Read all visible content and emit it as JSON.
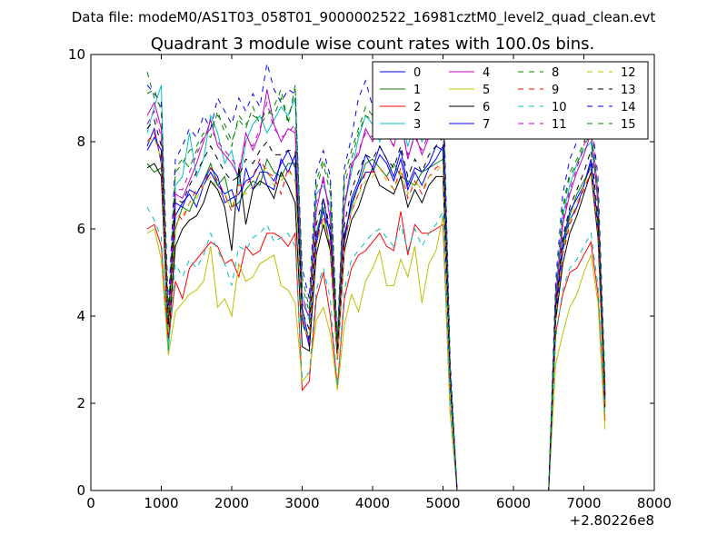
{
  "chart_data": {
    "type": "line",
    "suptitle": "Data file: modeM0/AS1T03_058T01_9000002522_16981cztM0_level2_quad_clean.evt",
    "title": "Quadrant 3 module wise count rates with 100.0s bins.",
    "xlabel": "",
    "ylabel": "",
    "x_offset_label": "+2.80226e8",
    "xlim": [
      0,
      8000
    ],
    "ylim": [
      0,
      10
    ],
    "xticks": [
      0,
      1000,
      2000,
      3000,
      4000,
      5000,
      6000,
      7000,
      8000
    ],
    "yticks": [
      0,
      2,
      4,
      6,
      8,
      10
    ],
    "x": [
      800,
      900,
      1000,
      1100,
      1200,
      1300,
      1400,
      1500,
      1600,
      1700,
      1800,
      1900,
      2000,
      2100,
      2200,
      2300,
      2400,
      2500,
      2600,
      2700,
      2800,
      2900,
      3000,
      3100,
      3200,
      3300,
      3400,
      3500,
      3600,
      3700,
      3800,
      3900,
      4000,
      4100,
      4200,
      4300,
      4400,
      4500,
      4600,
      4700,
      4800,
      4900,
      5000,
      5100,
      5200,
      5300,
      5400,
      5500,
      5600,
      5700,
      5800,
      5900,
      6000,
      6100,
      6200,
      6300,
      6400,
      6500,
      6600,
      6700,
      6800,
      6900,
      7000,
      7100,
      7200,
      7300
    ],
    "legend_location": "upper right",
    "series": [
      {
        "name": "0",
        "color": "#0000ff",
        "dash": "solid",
        "values": [
          7.8,
          8.1,
          7.8,
          3.6,
          6.3,
          6.6,
          6.8,
          6.5,
          7.0,
          7.3,
          7.0,
          6.8,
          6.9,
          6.4,
          7.4,
          6.9,
          7.3,
          7.3,
          7.1,
          7.5,
          7.8,
          7.4,
          4.0,
          3.3,
          5.6,
          6.7,
          5.8,
          3.2,
          5.7,
          6.7,
          7.1,
          7.7,
          7.4,
          7.9,
          7.6,
          7.2,
          7.8,
          7.0,
          7.4,
          7.3,
          7.5,
          7.9,
          7.8,
          2.6,
          0,
          0,
          0,
          0,
          0,
          0,
          0,
          0,
          0,
          0,
          0,
          0,
          0,
          0,
          4.0,
          5.5,
          6.2,
          6.5,
          7.0,
          7.6,
          6.0,
          2.2
        ]
      },
      {
        "name": "1",
        "color": "#008000",
        "dash": "solid",
        "values": [
          7.5,
          7.3,
          7.4,
          3.2,
          6.0,
          6.5,
          6.4,
          6.8,
          7.1,
          7.5,
          7.0,
          7.2,
          6.5,
          6.6,
          6.9,
          7.1,
          7.0,
          7.6,
          7.3,
          7.2,
          7.5,
          7.5,
          3.8,
          3.5,
          5.9,
          6.5,
          5.5,
          3.0,
          5.9,
          6.5,
          7.0,
          7.5,
          7.6,
          7.4,
          7.2,
          7.5,
          7.2,
          7.1,
          7.0,
          7.3,
          7.4,
          7.5,
          7.6,
          2.4,
          0,
          0,
          0,
          0,
          0,
          0,
          0,
          0,
          0,
          0,
          0,
          0,
          0,
          0,
          4.2,
          5.6,
          6.3,
          6.8,
          7.1,
          7.4,
          6.2,
          2.0
        ]
      },
      {
        "name": "2",
        "color": "#ff0000",
        "dash": "solid",
        "values": [
          6.0,
          6.1,
          5.6,
          3.4,
          4.8,
          4.4,
          5.1,
          5.3,
          5.5,
          5.7,
          5.6,
          5.2,
          5.3,
          4.9,
          5.6,
          5.4,
          5.5,
          5.9,
          5.9,
          5.8,
          5.6,
          5.9,
          2.3,
          2.5,
          4.4,
          5.0,
          4.0,
          2.4,
          4.4,
          5.1,
          5.4,
          5.5,
          5.7,
          5.9,
          5.6,
          5.5,
          6.4,
          5.4,
          6.1,
          5.9,
          5.9,
          6.0,
          6.1,
          1.8,
          0,
          0,
          0,
          0,
          0,
          0,
          0,
          0,
          0,
          0,
          0,
          0,
          0,
          0,
          3.6,
          4.5,
          5.0,
          5.1,
          5.4,
          5.7,
          4.5,
          1.6
        ]
      },
      {
        "name": "3",
        "color": "#00bfbf",
        "dash": "solid",
        "values": [
          8.2,
          8.8,
          9.3,
          3.3,
          7.0,
          7.2,
          8.2,
          7.2,
          7.6,
          8.6,
          8.2,
          7.5,
          7.8,
          7.0,
          8.0,
          8.4,
          8.6,
          8.2,
          8.5,
          8.8,
          8.6,
          9.0,
          4.5,
          3.9,
          6.8,
          7.0,
          6.5,
          3.2,
          6.5,
          7.3,
          8.1,
          8.6,
          8.4,
          8.0,
          8.3,
          8.1,
          8.5,
          7.9,
          8.4,
          8.0,
          8.3,
          8.6,
          9.4,
          2.8,
          0,
          0,
          0,
          0,
          0,
          0,
          0,
          0,
          0,
          0,
          0,
          0,
          0,
          0,
          4.5,
          6.3,
          7.0,
          7.5,
          7.8,
          8.0,
          6.7,
          2.3
        ]
      },
      {
        "name": "4",
        "color": "#bf00bf",
        "dash": "solid",
        "values": [
          8.6,
          8.9,
          8.3,
          3.8,
          6.8,
          6.7,
          7.1,
          7.5,
          8.0,
          8.5,
          7.9,
          7.7,
          7.5,
          7.2,
          8.2,
          7.8,
          8.2,
          9.2,
          8.4,
          8.0,
          8.3,
          8.2,
          4.3,
          4.0,
          6.4,
          7.2,
          6.2,
          3.3,
          6.5,
          7.5,
          7.7,
          8.3,
          8.0,
          8.4,
          8.2,
          7.9,
          8.5,
          7.6,
          8.2,
          7.7,
          8.1,
          8.4,
          8.5,
          2.7,
          0,
          0,
          0,
          0,
          0,
          0,
          0,
          0,
          0,
          0,
          0,
          0,
          0,
          0,
          4.3,
          6.1,
          6.8,
          7.3,
          7.7,
          8.2,
          6.6,
          2.2
        ]
      },
      {
        "name": "5",
        "color": "#bfbf00",
        "dash": "solid",
        "values": [
          5.9,
          6.0,
          5.3,
          3.1,
          4.1,
          4.3,
          4.5,
          4.6,
          4.8,
          5.6,
          4.2,
          4.4,
          4.0,
          5.2,
          4.8,
          4.9,
          5.2,
          5.3,
          5.4,
          4.7,
          4.6,
          4.3,
          2.5,
          2.7,
          3.9,
          4.2,
          3.6,
          2.3,
          3.8,
          4.5,
          4.1,
          4.8,
          5.1,
          5.5,
          4.7,
          4.7,
          5.3,
          4.9,
          5.6,
          4.3,
          5.2,
          5.5,
          6.3,
          1.8,
          0,
          0,
          0,
          0,
          0,
          0,
          0,
          0,
          0,
          0,
          0,
          0,
          0,
          0,
          2.9,
          3.6,
          4.2,
          4.5,
          5.0,
          5.4,
          4.3,
          1.4
        ]
      },
      {
        "name": "6",
        "color": "#000000",
        "dash": "solid",
        "values": [
          7.4,
          7.5,
          7.2,
          3.5,
          5.6,
          6.0,
          6.2,
          6.3,
          6.6,
          7.1,
          6.9,
          6.5,
          5.5,
          7.4,
          6.1,
          6.9,
          7.1,
          7.0,
          6.7,
          7.3,
          7.0,
          6.6,
          3.3,
          3.2,
          5.4,
          6.1,
          5.5,
          3.0,
          5.5,
          6.2,
          6.5,
          7.0,
          7.4,
          7.0,
          6.9,
          6.8,
          7.2,
          6.5,
          6.9,
          6.6,
          7.0,
          7.2,
          7.2,
          2.4,
          0,
          0,
          0,
          0,
          0,
          0,
          0,
          0,
          0,
          0,
          0,
          0,
          0,
          0,
          3.9,
          5.2,
          5.9,
          6.3,
          6.8,
          7.3,
          5.8,
          1.9
        ]
      },
      {
        "name": "7",
        "color": "#0000ff",
        "dash": "solid",
        "values": [
          7.9,
          8.3,
          7.5,
          3.7,
          6.6,
          6.5,
          6.9,
          6.8,
          7.1,
          7.4,
          7.2,
          6.6,
          6.7,
          6.8,
          7.1,
          7.2,
          7.5,
          7.0,
          6.9,
          7.6,
          7.3,
          7.7,
          4.2,
          3.4,
          5.8,
          6.4,
          5.9,
          3.1,
          5.8,
          6.6,
          7.0,
          7.3,
          7.3,
          7.7,
          7.5,
          7.1,
          7.6,
          6.9,
          7.3,
          7.0,
          7.4,
          7.6,
          7.9,
          2.5,
          0,
          0,
          0,
          0,
          0,
          0,
          0,
          0,
          0,
          0,
          0,
          0,
          0,
          0,
          4.1,
          5.7,
          6.4,
          6.7,
          7.0,
          7.5,
          6.1,
          2.1
        ]
      },
      {
        "name": "8",
        "color": "#008000",
        "dash": "dashed",
        "values": [
          9.6,
          9.0,
          8.8,
          4.1,
          7.4,
          7.6,
          7.4,
          7.8,
          8.1,
          8.3,
          8.6,
          8.4,
          8.0,
          8.5,
          8.3,
          8.8,
          8.4,
          8.6,
          8.8,
          9.2,
          8.4,
          9.3,
          4.9,
          4.2,
          7.1,
          7.6,
          7.0,
          3.4,
          7.2,
          7.8,
          8.3,
          8.8,
          8.6,
          9.0,
          8.6,
          8.4,
          8.8,
          8.3,
          8.6,
          8.2,
          8.7,
          8.9,
          9.2,
          2.9,
          0,
          0,
          0,
          0,
          0,
          0,
          0,
          0,
          0,
          0,
          0,
          0,
          0,
          0,
          4.6,
          6.5,
          7.3,
          7.6,
          8.0,
          8.3,
          6.9,
          2.4
        ]
      },
      {
        "name": "9",
        "color": "#ff0000",
        "dash": "dashed",
        "values": [
          8.0,
          8.2,
          7.6,
          3.5,
          6.4,
          6.2,
          6.6,
          6.9,
          7.0,
          7.4,
          7.1,
          6.8,
          6.4,
          7.0,
          7.0,
          7.2,
          7.6,
          7.3,
          7.2,
          6.8,
          7.4,
          7.1,
          3.9,
          3.4,
          5.7,
          6.3,
          5.6,
          3.0,
          5.7,
          6.4,
          6.8,
          7.3,
          7.3,
          7.4,
          7.2,
          6.9,
          7.4,
          6.7,
          7.1,
          6.8,
          7.2,
          7.4,
          7.5,
          2.5,
          0,
          0,
          0,
          0,
          0,
          0,
          0,
          0,
          0,
          0,
          0,
          0,
          0,
          0,
          4.0,
          5.4,
          6.1,
          6.5,
          6.9,
          7.3,
          5.9,
          2.0
        ]
      },
      {
        "name": "10",
        "color": "#00bfbf",
        "dash": "dashed",
        "values": [
          6.5,
          6.2,
          5.8,
          3.2,
          5.2,
          4.9,
          5.3,
          5.1,
          5.4,
          5.9,
          5.5,
          5.2,
          4.7,
          5.6,
          5.5,
          5.8,
          5.9,
          6.1,
          5.7,
          5.8,
          5.9,
          5.6,
          2.6,
          2.7,
          4.6,
          5.1,
          4.4,
          2.4,
          4.6,
          5.3,
          5.5,
          5.7,
          5.9,
          6.0,
          5.8,
          5.6,
          6.1,
          5.5,
          6.0,
          5.6,
          5.9,
          6.1,
          6.4,
          2.0,
          0,
          0,
          0,
          0,
          0,
          0,
          0,
          0,
          0,
          0,
          0,
          0,
          0,
          0,
          3.5,
          4.6,
          5.1,
          5.3,
          5.6,
          5.9,
          4.7,
          1.7
        ]
      },
      {
        "name": "11",
        "color": "#bf00bf",
        "dash": "dashed",
        "values": [
          8.4,
          8.7,
          8.1,
          3.9,
          6.9,
          6.9,
          7.3,
          7.7,
          8.1,
          8.3,
          8.0,
          7.8,
          7.6,
          7.4,
          8.0,
          7.9,
          8.3,
          8.9,
          8.3,
          8.1,
          8.2,
          8.4,
          4.4,
          4.1,
          6.6,
          7.1,
          6.4,
          3.3,
          6.6,
          7.4,
          7.8,
          8.2,
          8.1,
          8.3,
          8.1,
          7.9,
          8.4,
          7.7,
          8.1,
          7.8,
          8.2,
          8.3,
          8.6,
          2.7,
          0,
          0,
          0,
          0,
          0,
          0,
          0,
          0,
          0,
          0,
          0,
          0,
          0,
          0,
          4.4,
          6.2,
          6.9,
          7.4,
          7.9,
          8.7,
          6.8,
          2.3
        ]
      },
      {
        "name": "12",
        "color": "#bfbf00",
        "dash": "dashed",
        "values": [
          8.0,
          8.1,
          7.6,
          3.6,
          6.1,
          6.3,
          6.6,
          6.7,
          7.0,
          7.2,
          6.9,
          6.7,
          6.5,
          6.9,
          6.8,
          7.0,
          7.3,
          7.4,
          7.0,
          7.1,
          7.3,
          7.2,
          3.8,
          3.5,
          5.6,
          6.2,
          5.6,
          3.0,
          5.6,
          6.4,
          6.8,
          7.1,
          7.2,
          7.4,
          7.1,
          6.9,
          7.3,
          6.8,
          7.1,
          6.9,
          7.2,
          7.3,
          7.5,
          2.4,
          0,
          0,
          0,
          0,
          0,
          0,
          0,
          0,
          0,
          0,
          0,
          0,
          0,
          0,
          4.0,
          5.5,
          6.2,
          6.6,
          7.0,
          7.4,
          6.0,
          2.0
        ]
      },
      {
        "name": "13",
        "color": "#000000",
        "dash": "dashed",
        "values": [
          8.3,
          8.5,
          7.9,
          3.8,
          6.7,
          6.6,
          7.0,
          7.3,
          7.6,
          7.9,
          7.6,
          7.3,
          7.1,
          7.2,
          7.6,
          7.5,
          7.8,
          8.0,
          7.7,
          7.7,
          7.8,
          7.8,
          4.1,
          3.7,
          6.1,
          6.7,
          6.0,
          3.2,
          6.1,
          6.9,
          7.3,
          7.7,
          7.6,
          7.9,
          7.6,
          7.4,
          7.9,
          7.2,
          7.6,
          7.3,
          7.7,
          7.9,
          8.1,
          2.6,
          0,
          0,
          0,
          0,
          0,
          0,
          0,
          0,
          0,
          0,
          0,
          0,
          0,
          0,
          4.2,
          5.8,
          6.5,
          6.9,
          7.3,
          7.8,
          6.3,
          2.1
        ]
      },
      {
        "name": "14",
        "color": "#0000ff",
        "dash": "dashed",
        "values": [
          9.3,
          9.1,
          8.9,
          4.2,
          7.6,
          7.9,
          8.3,
          8.1,
          8.6,
          8.3,
          9.0,
          8.7,
          8.4,
          9.0,
          8.7,
          9.1,
          8.8,
          9.8,
          9.2,
          8.9,
          9.2,
          9.1,
          5.1,
          4.4,
          7.3,
          7.8,
          7.2,
          3.5,
          7.4,
          8.1,
          9.0,
          9.4,
          8.8,
          9.6,
          9.0,
          8.8,
          9.3,
          8.5,
          9.0,
          8.6,
          9.1,
          9.3,
          9.5,
          3.0,
          0,
          0,
          0,
          0,
          0,
          0,
          0,
          0,
          0,
          0,
          0,
          0,
          0,
          0,
          4.8,
          6.8,
          7.6,
          8.0,
          8.4,
          8.6,
          7.2,
          2.5
        ]
      },
      {
        "name": "15",
        "color": "#008000",
        "dash": "dashed",
        "values": [
          9.1,
          9.2,
          8.7,
          4.0,
          7.3,
          7.5,
          7.8,
          7.9,
          8.2,
          8.1,
          8.7,
          8.2,
          7.9,
          8.6,
          8.4,
          8.6,
          8.5,
          8.7,
          8.6,
          9.0,
          8.5,
          9.2,
          4.7,
          4.1,
          6.9,
          7.5,
          6.8,
          3.4,
          7.0,
          7.6,
          8.2,
          8.6,
          8.5,
          8.8,
          8.4,
          8.3,
          8.7,
          8.1,
          8.5,
          8.1,
          8.6,
          8.8,
          9.1,
          2.8,
          0,
          0,
          0,
          0,
          0,
          0,
          0,
          0,
          0,
          0,
          0,
          0,
          0,
          0,
          4.5,
          6.4,
          7.2,
          7.5,
          7.9,
          8.2,
          6.8,
          2.4
        ]
      }
    ]
  }
}
